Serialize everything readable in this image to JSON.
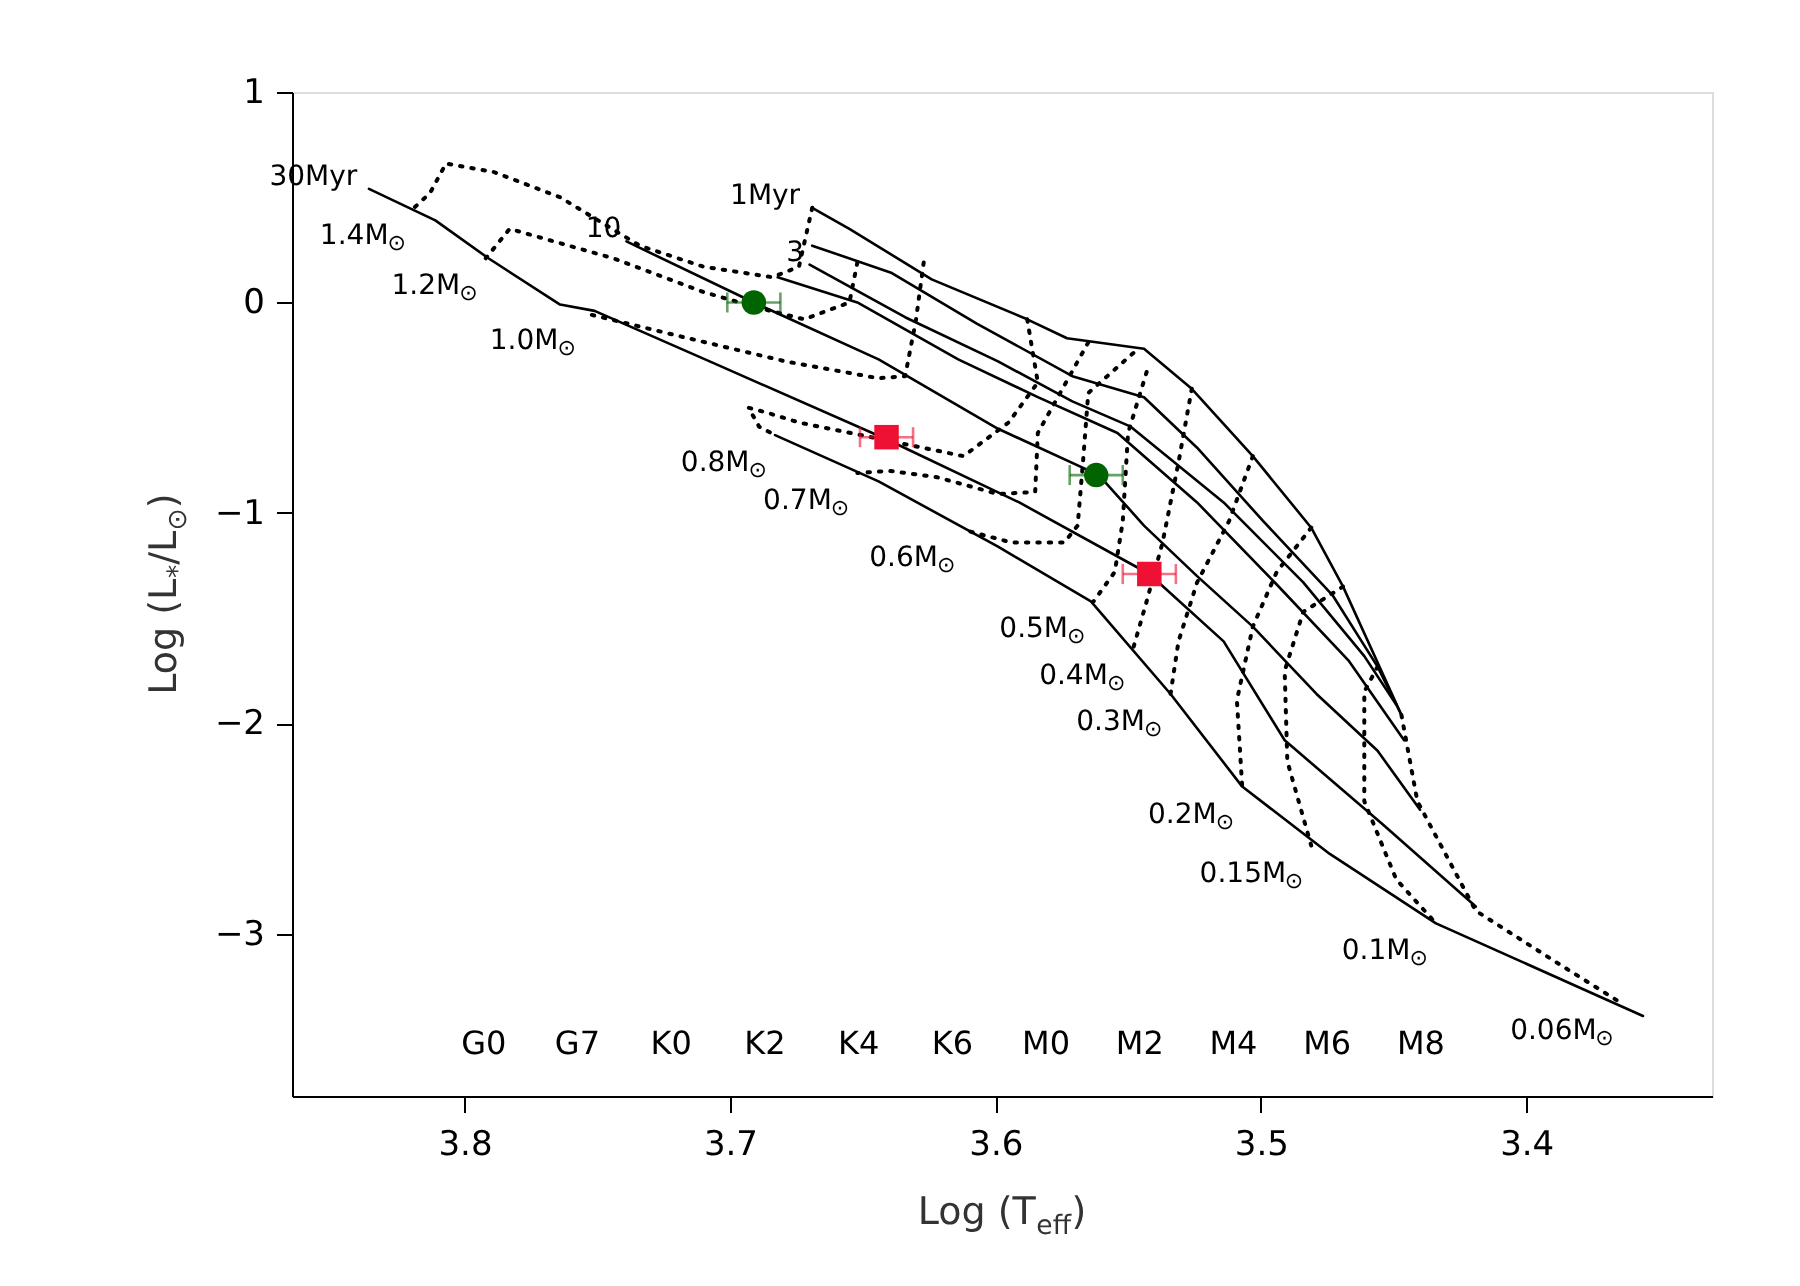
{
  "chart_data": {
    "type": "line",
    "xlabel": "Log (T$_{eff}$)",
    "ylabel": "Log (L$_{*}$/L$_{⊙}$)",
    "xlim": [
      3.865,
      3.33
    ],
    "ylim": [
      -3.77,
      1.0
    ],
    "xticks": [
      3.8,
      3.7,
      3.6,
      3.5,
      3.4
    ],
    "yticks": [
      1,
      0,
      -1,
      -2,
      -3
    ],
    "grid": false,
    "annotations": [
      "G0",
      "G7",
      "K0",
      "K2",
      "K4",
      "K6",
      "M0",
      "M2",
      "M4",
      "M6",
      "M8"
    ],
    "series": [
      {
        "name": "1Myr",
        "line_style": "solid",
        "color": "#000000",
        "x": [
          3.669,
          3.655,
          3.624,
          3.588,
          3.573,
          3.544,
          3.526,
          3.503,
          3.481,
          3.469,
          3.447
        ],
        "values": [
          0.45,
          0.35,
          0.11,
          -0.08,
          -0.17,
          -0.22,
          -0.41,
          -0.73,
          -1.07,
          -1.35,
          -1.96
        ]
      },
      {
        "line_style": "solid",
        "color": "#000000",
        "x": [
          3.669,
          3.639,
          3.607,
          3.571,
          3.544,
          3.524,
          3.499,
          3.473,
          3.456,
          3.447
        ],
        "values": [
          0.27,
          0.14,
          -0.1,
          -0.35,
          -0.45,
          -0.69,
          -1.04,
          -1.39,
          -1.73,
          -1.96
        ]
      },
      {
        "name": "3",
        "line_style": "solid",
        "color": "#000000",
        "x": [
          3.67,
          3.634,
          3.599,
          3.571,
          3.549,
          3.514,
          3.484,
          3.461,
          3.449
        ],
        "values": [
          0.18,
          -0.07,
          -0.28,
          -0.47,
          -0.59,
          -0.95,
          -1.33,
          -1.68,
          -1.91
        ]
      },
      {
        "line_style": "solid",
        "color": "#000000",
        "x": [
          3.682,
          3.652,
          3.614,
          3.584,
          3.554,
          3.524,
          3.494,
          3.467,
          3.446
        ],
        "values": [
          0.12,
          0.0,
          -0.27,
          -0.45,
          -0.62,
          -0.95,
          -1.34,
          -1.7,
          -2.08
        ]
      },
      {
        "name": "10",
        "line_style": "solid",
        "color": "#000000",
        "x": [
          3.739,
          3.691,
          3.644,
          3.599,
          3.561,
          3.544,
          3.524,
          3.503,
          3.479,
          3.456,
          3.44
        ],
        "values": [
          0.29,
          0.0,
          -0.27,
          -0.6,
          -0.82,
          -1.06,
          -1.3,
          -1.54,
          -1.86,
          -2.13,
          -2.41
        ]
      },
      {
        "name": "30Myr",
        "line_style": "solid",
        "color": "#000000",
        "x": [
          3.836,
          3.811,
          3.791,
          3.764,
          3.751,
          3.704,
          3.641,
          3.591,
          3.542,
          3.514,
          3.491,
          3.454,
          3.419
        ],
        "values": [
          0.54,
          0.39,
          0.21,
          -0.01,
          -0.04,
          -0.3,
          -0.65,
          -0.95,
          -1.29,
          -1.61,
          -2.08,
          -2.48,
          -2.87
        ]
      },
      {
        "line_style": "solid",
        "color": "#000000",
        "x": [
          3.683,
          3.644,
          3.599,
          3.564,
          3.534,
          3.507,
          3.474,
          3.434,
          3.356
        ],
        "values": [
          -0.63,
          -0.85,
          -1.16,
          -1.42,
          -1.86,
          -2.3,
          -2.62,
          -2.95,
          -3.39
        ]
      },
      {
        "name": "1.4M$_{⊙}$",
        "line_style": "dotted",
        "color": "#000000",
        "x": [
          3.669,
          3.674,
          3.684,
          3.71,
          3.734,
          3.764,
          3.789,
          3.807,
          3.813,
          3.819
        ],
        "values": [
          0.45,
          0.17,
          0.12,
          0.17,
          0.27,
          0.5,
          0.62,
          0.66,
          0.52,
          0.45
        ]
      },
      {
        "name": "1.2M$_{⊙}$",
        "line_style": "dotted",
        "color": "#000000",
        "x": [
          3.652,
          3.655,
          3.672,
          3.691,
          3.71,
          3.744,
          3.783,
          3.792
        ],
        "values": [
          0.19,
          0.0,
          -0.08,
          -0.02,
          0.05,
          0.21,
          0.35,
          0.21
        ]
      },
      {
        "name": "1.0M$_{⊙}$",
        "line_style": "dotted",
        "color": "#000000",
        "x": [
          3.627,
          3.63,
          3.634,
          3.644,
          3.679,
          3.719,
          3.755
        ],
        "values": [
          0.19,
          -0.09,
          -0.35,
          -0.36,
          -0.28,
          -0.16,
          -0.05
        ]
      },
      {
        "name": "0.8M$_{⊙}$",
        "line_style": "dotted",
        "color": "#000000",
        "x": [
          3.588,
          3.584,
          3.595,
          3.612,
          3.639,
          3.674,
          3.687,
          3.693,
          3.689,
          3.683
        ],
        "values": [
          -0.08,
          -0.38,
          -0.57,
          -0.73,
          -0.66,
          -0.57,
          -0.52,
          -0.5,
          -0.59,
          -0.63
        ]
      },
      {
        "name": "0.7M$_{⊙}$",
        "line_style": "dotted",
        "color": "#000000",
        "x": [
          3.565,
          3.584,
          3.585,
          3.599,
          3.622,
          3.64,
          3.652
        ],
        "values": [
          -0.19,
          -0.62,
          -0.9,
          -0.91,
          -0.83,
          -0.8,
          -0.81
        ]
      },
      {
        "name": "0.6M$_{⊙}$",
        "line_style": "dotted",
        "color": "#000000",
        "x": [
          3.548,
          3.565,
          3.567,
          3.569,
          3.574,
          3.594,
          3.612
        ],
        "values": [
          -0.24,
          -0.43,
          -0.76,
          -1.06,
          -1.14,
          -1.14,
          -1.08
        ]
      },
      {
        "name": "0.5M$_{⊙}$",
        "line_style": "dotted",
        "color": "#000000",
        "x": [
          3.543,
          3.55,
          3.552,
          3.555,
          3.563
        ],
        "values": [
          -0.33,
          -0.62,
          -1.04,
          -1.28,
          -1.42
        ]
      },
      {
        "name": "0.4M$_{⊙}$",
        "line_style": "dotted",
        "color": "#000000",
        "x": [
          3.526,
          3.531,
          3.537,
          3.543,
          3.548
        ],
        "values": [
          -0.41,
          -0.76,
          -1.14,
          -1.42,
          -1.64
        ]
      },
      {
        "name": "0.3M$_{⊙}$",
        "line_style": "dotted",
        "color": "#000000",
        "x": [
          3.503,
          3.512,
          3.524,
          3.531,
          3.534
        ],
        "values": [
          -0.73,
          -1.04,
          -1.33,
          -1.61,
          -1.86
        ]
      },
      {
        "name": "0.2M$_{⊙}$",
        "line_style": "dotted",
        "color": "#000000",
        "x": [
          3.481,
          3.494,
          3.503,
          3.509,
          3.507
        ],
        "values": [
          -1.07,
          -1.28,
          -1.54,
          -1.89,
          -2.3
        ]
      },
      {
        "name": "0.15M$_{⊙}$",
        "line_style": "dotted",
        "color": "#000000",
        "x": [
          3.469,
          3.484,
          3.491,
          3.49,
          3.481
        ],
        "values": [
          -1.35,
          -1.47,
          -1.75,
          -2.18,
          -2.58
        ]
      },
      {
        "name": "0.1M$_{⊙}$",
        "line_style": "dotted",
        "color": "#000000",
        "x": [
          3.456,
          3.461,
          3.461,
          3.449,
          3.434
        ],
        "values": [
          -1.73,
          -1.85,
          -2.37,
          -2.74,
          -2.95
        ]
      },
      {
        "name": "0.06M$_{⊙}$",
        "line_style": "dotted",
        "color": "#000000",
        "x": [
          3.447,
          3.441,
          3.419,
          3.388,
          3.364
        ],
        "values": [
          -1.96,
          -2.37,
          -2.89,
          -3.14,
          -3.33
        ]
      },
      {
        "type": "scatter",
        "marker": "circle",
        "color": "#006400",
        "x": [
          3.691,
          3.562
        ],
        "values": [
          0.0,
          -0.82
        ],
        "xerrors": [
          0.01,
          0.01
        ]
      },
      {
        "type": "scatter",
        "marker": "square",
        "color": "#ee1133",
        "x": [
          3.641,
          3.542
        ],
        "values": [
          -0.64,
          -1.29
        ],
        "xerrors": [
          0.01,
          0.01
        ]
      }
    ]
  }
}
